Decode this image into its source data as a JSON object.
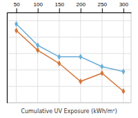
{
  "chart_data": {
    "type": "line",
    "xlabel": "Cumulative UV Exposure (kWh/m²)",
    "x": [
      50,
      100,
      150,
      200,
      250,
      300
    ],
    "series": [
      {
        "color": "#6BAED6",
        "values": [
          98,
          85,
          78,
          78,
          72,
          69
        ]
      },
      {
        "color": "#D4763B",
        "values": [
          94,
          82,
          74,
          63,
          68,
          57
        ]
      }
    ],
    "marker": "diamond",
    "xlim": [
      28,
      318
    ],
    "ylim": [
      50,
      105
    ],
    "xticks": [
      50,
      100,
      150,
      200,
      250,
      300
    ],
    "yticks": [
      50,
      60,
      70,
      80,
      90,
      100
    ],
    "grid": true,
    "tick_labels": "x"
  }
}
